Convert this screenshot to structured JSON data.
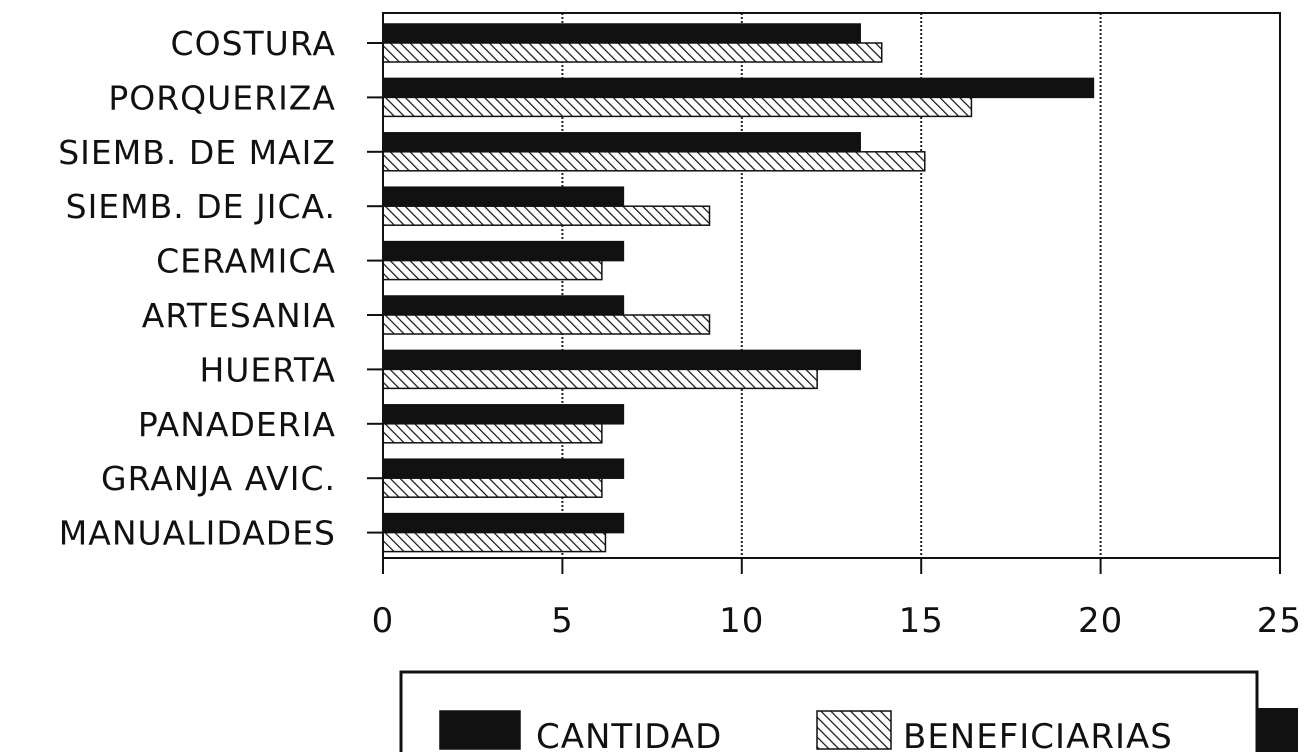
{
  "chart_data": {
    "type": "bar",
    "orientation": "horizontal",
    "categories": [
      "COSTURA",
      "PORQUERIZA",
      "SIEMB. DE MAIZ",
      "SIEMB. DE JICA.",
      "CERAMICA",
      "ARTESANIA",
      "HUERTA",
      "PANADERIA",
      "GRANJA AVIC.",
      "MANUALIDADES"
    ],
    "series": [
      {
        "name": "CANTIDAD",
        "pattern": "solid",
        "color": "#111111",
        "values": [
          13.3,
          19.8,
          13.3,
          6.7,
          6.7,
          6.7,
          13.3,
          6.7,
          6.7,
          6.7
        ]
      },
      {
        "name": "BENEFICIARIAS",
        "pattern": "diagonal-hatch",
        "color": "#111111",
        "values": [
          13.9,
          16.4,
          15.1,
          9.1,
          6.1,
          9.1,
          12.1,
          6.1,
          6.1,
          6.2
        ]
      }
    ],
    "xlim": [
      0,
      25
    ],
    "xticks": [
      0,
      5,
      10,
      15,
      20,
      25
    ],
    "grid": "vertical dotted at 5, 10, 15, 20",
    "legend_position": "bottom",
    "title": "",
    "xlabel": "",
    "ylabel": ""
  }
}
